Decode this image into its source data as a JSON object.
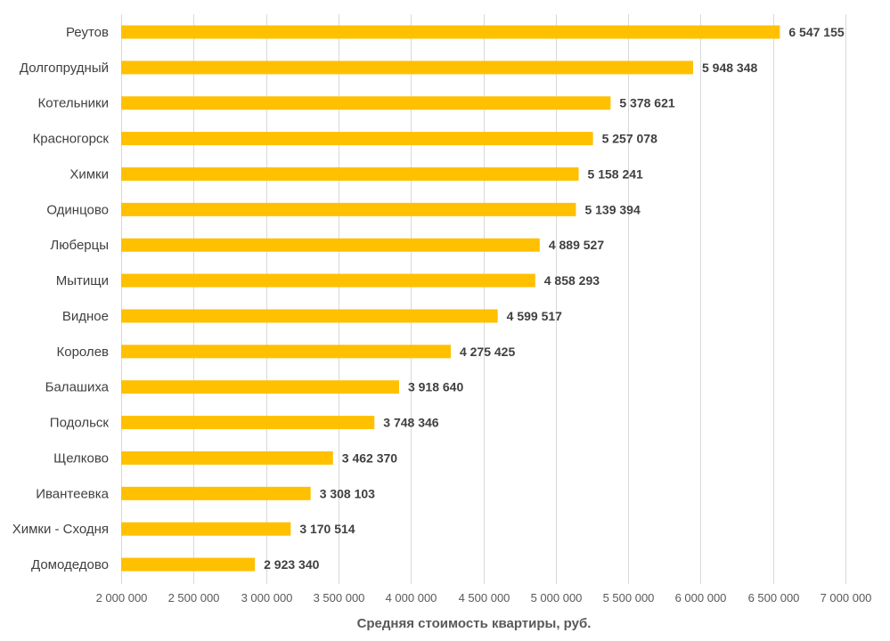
{
  "chart_data": {
    "type": "bar",
    "orientation": "horizontal",
    "categories": [
      "Реутов",
      "Долгопрудный",
      "Котельники",
      "Красногорск",
      "Химки",
      "Одинцово",
      "Люберцы",
      "Мытищи",
      "Видное",
      "Королев",
      "Балашиха",
      "Подольск",
      "Щелково",
      "Ивантеевка",
      "Химки - Сходня",
      "Домодедово"
    ],
    "values": [
      6547155,
      5948348,
      5378621,
      5257078,
      5158241,
      5139394,
      4889527,
      4858293,
      4599517,
      4275425,
      3918640,
      3748346,
      3462370,
      3308103,
      3170514,
      2923340
    ],
    "value_labels": [
      "6 547 155",
      "5 948 348",
      "5 378 621",
      "5 257 078",
      "5 158 241",
      "5 139 394",
      "4 889 527",
      "4 858 293",
      "4 599 517",
      "4 275 425",
      "3 918 640",
      "3 748 346",
      "3 462 370",
      "3 308 103",
      "3 170 514",
      "2 923 340"
    ],
    "xlim": [
      2000000,
      7000000
    ],
    "xticks": [
      2000000,
      2500000,
      3000000,
      3500000,
      4000000,
      4500000,
      5000000,
      5500000,
      6000000,
      6500000,
      7000000
    ],
    "xtick_labels": [
      "2 000 000",
      "2 500 000",
      "3 000 000",
      "3 500 000",
      "4 000 000",
      "4 500 000",
      "5 000 000",
      "5 500 000",
      "6 000 000",
      "6 500 000",
      "7 000 000"
    ],
    "xlabel": "Средняя стоимость квартиры, руб.",
    "ylabel": "",
    "title": "",
    "grid": true,
    "bar_color": "#FFC000"
  }
}
